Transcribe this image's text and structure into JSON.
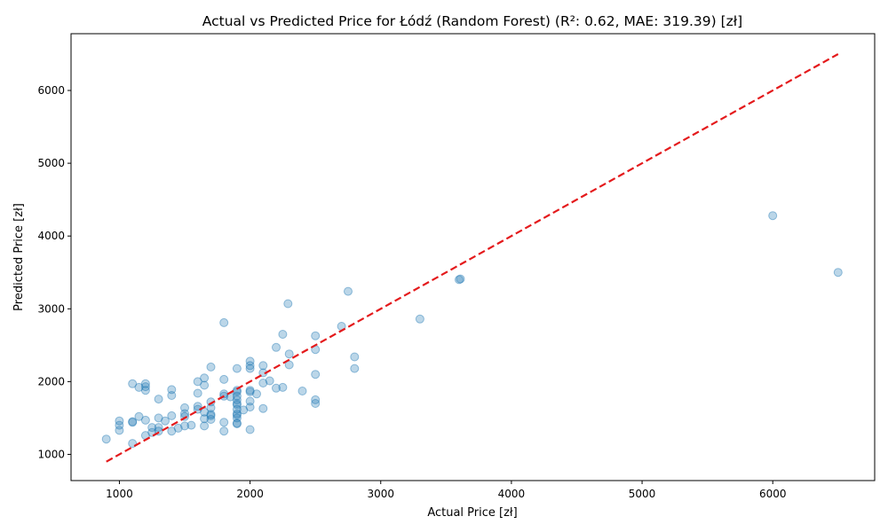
{
  "chart_data": {
    "type": "scatter",
    "title": "Actual vs Predicted Price for Łódź (Random Forest) (R²: 0.62, MAE: 319.39) [zł]",
    "xlabel": "Actual Price [zł]",
    "ylabel": "Predicted Price [zł]",
    "xlim": [
      630,
      6780
    ],
    "ylim": [
      640,
      6780
    ],
    "xticks": [
      1000,
      2000,
      3000,
      4000,
      5000,
      6000
    ],
    "yticks": [
      1000,
      2000,
      3000,
      4000,
      5000,
      6000
    ],
    "grid": false,
    "legend": "none",
    "point_color": "#1f77b4",
    "line_color": "#e41a1c",
    "reference_line": [
      [
        900,
        900
      ],
      [
        6500,
        6500
      ]
    ],
    "points": [
      [
        900,
        1210
      ],
      [
        1000,
        1460
      ],
      [
        1000,
        1400
      ],
      [
        1000,
        1330
      ],
      [
        1100,
        1450
      ],
      [
        1100,
        1440
      ],
      [
        1100,
        1150
      ],
      [
        1100,
        1970
      ],
      [
        1150,
        1920
      ],
      [
        1150,
        1520
      ],
      [
        1200,
        1970
      ],
      [
        1200,
        1930
      ],
      [
        1200,
        1880
      ],
      [
        1200,
        1470
      ],
      [
        1200,
        1260
      ],
      [
        1250,
        1370
      ],
      [
        1250,
        1300
      ],
      [
        1300,
        1760
      ],
      [
        1300,
        1500
      ],
      [
        1300,
        1370
      ],
      [
        1300,
        1320
      ],
      [
        1350,
        1460
      ],
      [
        1400,
        1890
      ],
      [
        1400,
        1810
      ],
      [
        1400,
        1530
      ],
      [
        1400,
        1320
      ],
      [
        1450,
        1360
      ],
      [
        1500,
        1640
      ],
      [
        1500,
        1560
      ],
      [
        1500,
        1520
      ],
      [
        1500,
        1390
      ],
      [
        1550,
        1400
      ],
      [
        1600,
        2000
      ],
      [
        1600,
        1840
      ],
      [
        1600,
        1660
      ],
      [
        1600,
        1620
      ],
      [
        1650,
        2050
      ],
      [
        1650,
        1950
      ],
      [
        1650,
        1580
      ],
      [
        1650,
        1490
      ],
      [
        1650,
        1390
      ],
      [
        1700,
        2200
      ],
      [
        1700,
        1720
      ],
      [
        1700,
        1640
      ],
      [
        1700,
        1550
      ],
      [
        1700,
        1530
      ],
      [
        1700,
        1480
      ],
      [
        1800,
        2810
      ],
      [
        1800,
        2030
      ],
      [
        1800,
        1830
      ],
      [
        1800,
        1800
      ],
      [
        1800,
        1440
      ],
      [
        1800,
        1320
      ],
      [
        1850,
        1790
      ],
      [
        1900,
        2180
      ],
      [
        1900,
        1880
      ],
      [
        1900,
        1860
      ],
      [
        1900,
        1800
      ],
      [
        1900,
        1750
      ],
      [
        1900,
        1700
      ],
      [
        1900,
        1680
      ],
      [
        1900,
        1620
      ],
      [
        1900,
        1560
      ],
      [
        1900,
        1540
      ],
      [
        1900,
        1500
      ],
      [
        1900,
        1430
      ],
      [
        1900,
        1420
      ],
      [
        1950,
        1610
      ],
      [
        2000,
        2280
      ],
      [
        2000,
        2220
      ],
      [
        2000,
        2180
      ],
      [
        2000,
        1880
      ],
      [
        2000,
        1860
      ],
      [
        2000,
        1730
      ],
      [
        2000,
        1650
      ],
      [
        2000,
        1340
      ],
      [
        2050,
        1830
      ],
      [
        2100,
        2220
      ],
      [
        2100,
        2120
      ],
      [
        2100,
        1980
      ],
      [
        2100,
        1630
      ],
      [
        2150,
        2010
      ],
      [
        2200,
        2470
      ],
      [
        2200,
        1910
      ],
      [
        2250,
        2650
      ],
      [
        2250,
        1920
      ],
      [
        2290,
        3070
      ],
      [
        2300,
        2380
      ],
      [
        2300,
        2230
      ],
      [
        2400,
        1870
      ],
      [
        2500,
        2630
      ],
      [
        2500,
        2440
      ],
      [
        2500,
        2100
      ],
      [
        2500,
        1750
      ],
      [
        2500,
        1700
      ],
      [
        2700,
        2760
      ],
      [
        2750,
        3240
      ],
      [
        2800,
        2340
      ],
      [
        2800,
        2180
      ],
      [
        3300,
        2860
      ],
      [
        3600,
        3400
      ],
      [
        3610,
        3410
      ],
      [
        6000,
        4280
      ],
      [
        6500,
        3500
      ]
    ]
  }
}
